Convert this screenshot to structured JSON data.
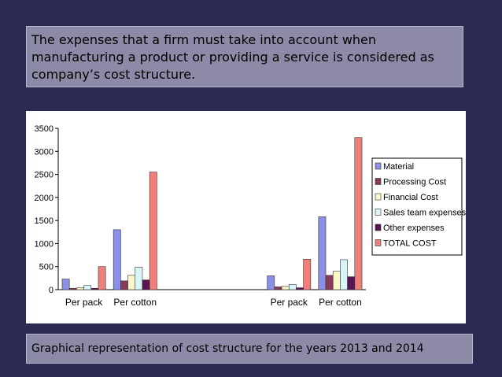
{
  "intro_text": "The expenses that a firm must take into account when manufacturing a product or providing a service is considered as company’s cost structure.",
  "caption_text": "Graphical representation of cost structure for the years 2013 and 2014",
  "colors": {
    "background": "#2b2a52",
    "panel": "#8c8aa6"
  },
  "chart_data": {
    "type": "bar",
    "title": "",
    "xlabel": "",
    "ylabel": "",
    "categories": [
      "Per pack",
      "Per cotton",
      "",
      "",
      "Per pack",
      "Per cotton"
    ],
    "ylim": [
      0,
      3500
    ],
    "yticks": [
      "0",
      "500",
      "1000",
      "1500",
      "2000",
      "2500",
      "3000",
      "3500"
    ],
    "grid": false,
    "legend_position": "right",
    "series": [
      {
        "name": "Material",
        "color": "#8c8fe6",
        "values": [
          230,
          1300,
          0,
          0,
          300,
          1580
        ]
      },
      {
        "name": "Processing Cost",
        "color": "#8a3a5a",
        "values": [
          30,
          190,
          0,
          0,
          60,
          310
        ]
      },
      {
        "name": "Financial Cost",
        "color": "#fbf7c8",
        "values": [
          40,
          310,
          0,
          0,
          70,
          400
        ]
      },
      {
        "name": "Sales team expenses",
        "color": "#d8f6f8",
        "values": [
          90,
          490,
          0,
          0,
          110,
          650
        ]
      },
      {
        "name": "Other expenses",
        "color": "#5a1456",
        "values": [
          30,
          210,
          0,
          0,
          40,
          280
        ]
      },
      {
        "name": "TOTAL COST",
        "color": "#f07f7a",
        "values": [
          500,
          2550,
          0,
          0,
          660,
          3300
        ]
      }
    ]
  }
}
